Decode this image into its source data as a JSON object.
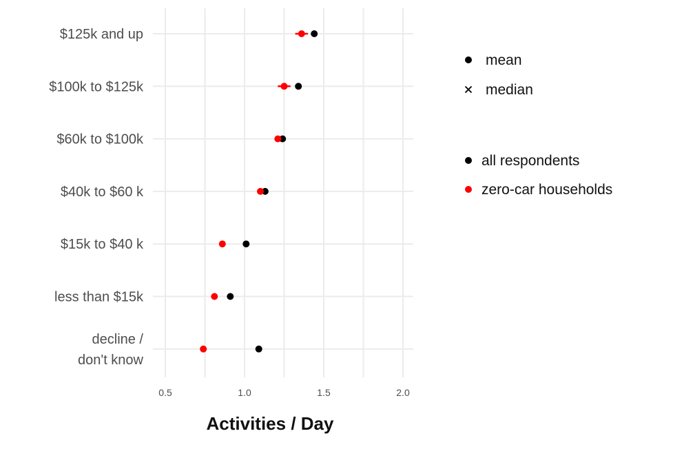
{
  "chart_data": {
    "type": "scatter",
    "title": "",
    "xlabel": "Activities / Day",
    "ylabel": "",
    "xlim": [
      0.4,
      2.07
    ],
    "x_ticks": [
      {
        "value": 0.5,
        "label": "0.5"
      },
      {
        "value": 1.0,
        "label": "1.0"
      },
      {
        "value": 1.5,
        "label": "1.5"
      },
      {
        "value": 2.0,
        "label": "2.0"
      }
    ],
    "grid": true,
    "categories": [
      "$125k and up",
      "$100k to $125k",
      "$60k to $100k",
      "$40k to $60 k",
      "$15k to $40 k",
      "less than $15k",
      "decline /\ndon't know"
    ],
    "series": [
      {
        "name": "all respondents",
        "color": "#000000",
        "statistic": "mean",
        "values": [
          1.44,
          1.34,
          1.24,
          1.13,
          1.01,
          0.91,
          1.09
        ],
        "interval_low": [
          null,
          null,
          null,
          null,
          null,
          null,
          null
        ],
        "interval_high": [
          null,
          null,
          null,
          null,
          null,
          null,
          null
        ]
      },
      {
        "name": "zero-car households",
        "color": "#ff0000",
        "statistic": "mean",
        "values": [
          1.36,
          1.25,
          1.21,
          1.1,
          0.86,
          0.81,
          0.74
        ],
        "interval_low": [
          1.32,
          1.21,
          1.19,
          1.08,
          0.84,
          0.79,
          0.72
        ],
        "interval_high": [
          1.4,
          1.29,
          1.23,
          1.12,
          0.88,
          0.83,
          0.76
        ]
      }
    ],
    "legend": {
      "placement": "right",
      "shape_title": "",
      "shape_items": [
        {
          "label": "mean",
          "symbol": "dot"
        },
        {
          "label": "median",
          "symbol": "cross"
        }
      ],
      "color_title": "",
      "color_items": [
        {
          "label": "all respondents",
          "color": "#000000"
        },
        {
          "label": "zero-car households",
          "color": "#ff0000"
        }
      ]
    }
  }
}
